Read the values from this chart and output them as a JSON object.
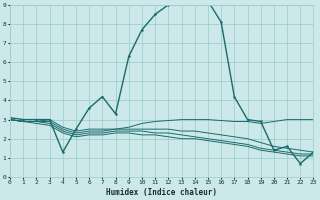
{
  "xlabel": "Humidex (Indice chaleur)",
  "background_color": "#cce8e8",
  "grid_color": "#9fcfcf",
  "line_color": "#1a6b6b",
  "x_min": 0,
  "x_max": 23,
  "y_min": 0,
  "y_max": 9,
  "curve_main_x": [
    0,
    1,
    2,
    3,
    4,
    5,
    6,
    7,
    8,
    9,
    10,
    11,
    12,
    13,
    14,
    15,
    16,
    17,
    18,
    19,
    20,
    21,
    22,
    23
  ],
  "curve_main_y": [
    3.1,
    3.0,
    3.0,
    3.0,
    1.3,
    2.5,
    3.6,
    4.2,
    3.3,
    6.3,
    7.7,
    8.5,
    9.0,
    9.3,
    9.25,
    9.2,
    8.1,
    4.2,
    3.0,
    2.9,
    1.4,
    1.6,
    0.7,
    1.3
  ],
  "curve_flat1_x": [
    0,
    1,
    2,
    3,
    4,
    5,
    6,
    7,
    8,
    9,
    10,
    11,
    12,
    13,
    14,
    15,
    16,
    17,
    18,
    19,
    20,
    21,
    22,
    23
  ],
  "curve_flat1_y": [
    3.0,
    2.9,
    2.9,
    3.0,
    2.6,
    2.4,
    2.5,
    2.5,
    2.5,
    2.6,
    2.8,
    2.9,
    2.95,
    3.0,
    3.0,
    3.0,
    2.95,
    2.9,
    2.9,
    2.8,
    2.9,
    3.0,
    3.0,
    3.0
  ],
  "curve_flat2_x": [
    0,
    1,
    2,
    3,
    4,
    5,
    6,
    7,
    8,
    9,
    10,
    11,
    12,
    13,
    14,
    15,
    16,
    17,
    18,
    19,
    20,
    21,
    22,
    23
  ],
  "curve_flat2_y": [
    3.0,
    2.9,
    2.9,
    2.9,
    2.5,
    2.3,
    2.4,
    2.4,
    2.5,
    2.5,
    2.5,
    2.5,
    2.5,
    2.4,
    2.4,
    2.3,
    2.2,
    2.1,
    2.0,
    1.8,
    1.6,
    1.5,
    1.4,
    1.3
  ],
  "curve_flat3_x": [
    0,
    1,
    2,
    3,
    4,
    5,
    6,
    7,
    8,
    9,
    10,
    11,
    12,
    13,
    14,
    15,
    16,
    17,
    18,
    19,
    20,
    21,
    22,
    23
  ],
  "curve_flat3_y": [
    3.0,
    2.9,
    2.9,
    2.8,
    2.4,
    2.2,
    2.3,
    2.3,
    2.4,
    2.4,
    2.4,
    2.3,
    2.3,
    2.2,
    2.1,
    2.0,
    1.9,
    1.8,
    1.7,
    1.5,
    1.4,
    1.3,
    1.2,
    1.2
  ],
  "curve_flat4_x": [
    0,
    1,
    2,
    3,
    4,
    5,
    6,
    7,
    8,
    9,
    10,
    11,
    12,
    13,
    14,
    15,
    16,
    17,
    18,
    19,
    20,
    21,
    22,
    23
  ],
  "curve_flat4_y": [
    3.0,
    2.9,
    2.8,
    2.7,
    2.3,
    2.1,
    2.2,
    2.2,
    2.3,
    2.3,
    2.2,
    2.2,
    2.1,
    2.0,
    2.0,
    1.9,
    1.8,
    1.7,
    1.6,
    1.4,
    1.3,
    1.2,
    1.1,
    1.1
  ]
}
